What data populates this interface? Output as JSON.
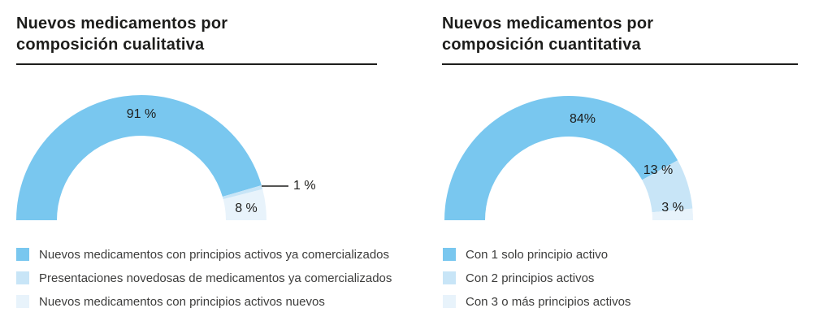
{
  "page": {
    "background": "#ffffff"
  },
  "styles": {
    "title_color": "#1d1d1b",
    "rule_color": "#1d1d1b",
    "value_label_color": "#1d1d1b",
    "legend_text_color": "#3c3c3b",
    "callout_line_color": "#1d1d1b"
  },
  "chart_data": [
    {
      "type": "pie",
      "subtype": "half-donut",
      "title": "Nuevos medicamentos por composición cualitativa",
      "title_lines": [
        "Nuevos medicamentos por",
        "composición cualitativa"
      ],
      "categories": [
        "Nuevos medicamentos con principios activos ya comercializados",
        "Presentaciones novedosas de medicamentos ya comercializados",
        "Nuevos medicamentos con principios activos nuevos"
      ],
      "values": [
        91,
        1,
        8
      ],
      "value_labels": [
        "91 %",
        "1 %",
        "8 %"
      ],
      "colors": [
        "#79c7ef",
        "#c8e5f7",
        "#e8f3fb"
      ],
      "total": 100,
      "start_angle_deg": 180,
      "end_angle_deg": 0,
      "sweep": "clockwise",
      "legend_position": "bottom-left",
      "annotations": [
        {
          "segment_index": 1,
          "text": "1 %",
          "style": "callout-line"
        }
      ]
    },
    {
      "type": "pie",
      "subtype": "half-donut",
      "title": "Nuevos medicamentos por composición cuantitativa",
      "title_lines": [
        "Nuevos medicamentos por",
        "composición cuantitativa"
      ],
      "categories": [
        "Con 1 solo principio activo",
        "Con 2 principios activos",
        "Con 3 o más principios activos"
      ],
      "values": [
        84,
        13,
        3
      ],
      "value_labels": [
        "84%",
        "13 %",
        "3 %"
      ],
      "colors": [
        "#79c7ef",
        "#c8e5f7",
        "#e8f3fb"
      ],
      "total": 100,
      "start_angle_deg": 180,
      "end_angle_deg": 0,
      "sweep": "clockwise",
      "legend_position": "bottom-left"
    }
  ]
}
